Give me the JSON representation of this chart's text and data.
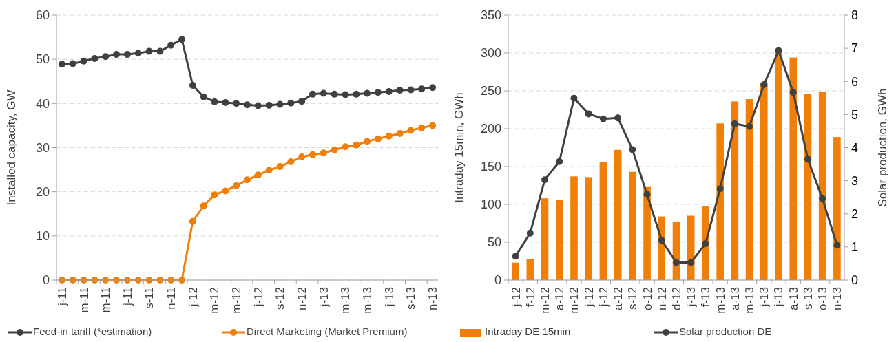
{
  "chart_data": [
    {
      "type": "line",
      "ylabel": "Installed capacity, GW",
      "categories": [
        "j-11",
        null,
        "m-11",
        null,
        "m-11",
        null,
        "j-11",
        null,
        "s-11",
        null,
        "n-11",
        null,
        "j-12",
        null,
        "m-12",
        null,
        "m-12",
        null,
        "j-12",
        null,
        "s-12",
        null,
        "n-12",
        null,
        "j-13",
        null,
        "m-13",
        null,
        "m-13",
        null,
        "j-13",
        null,
        "s-13",
        null,
        "n-13"
      ],
      "series": [
        {
          "name": "Feed-in tariff (*estimation)",
          "color": "#404040",
          "values": [
            48.9,
            49.0,
            49.6,
            50.2,
            50.6,
            51.1,
            51.1,
            51.4,
            51.8,
            51.8,
            53.2,
            54.5,
            44.1,
            41.5,
            40.4,
            40.2,
            40.0,
            39.7,
            39.5,
            39.6,
            39.8,
            40.1,
            40.5,
            42.1,
            42.3,
            42.1,
            42.0,
            42.1,
            42.3,
            42.5,
            42.7,
            43.0,
            43.1,
            43.3,
            43.6
          ]
        },
        {
          "name": "Direct Marketing (Market Premium)",
          "color": "#f07f09",
          "values": [
            0,
            0,
            0,
            0,
            0,
            0,
            0,
            0,
            0,
            0,
            0,
            0,
            13.3,
            16.8,
            19.3,
            20.2,
            21.4,
            22.7,
            23.8,
            24.9,
            25.7,
            26.8,
            27.9,
            28.4,
            28.8,
            29.5,
            30.2,
            30.6,
            31.4,
            32.0,
            32.6,
            33.2,
            33.9,
            34.5,
            35.0
          ]
        }
      ],
      "ylim": [
        0,
        60
      ],
      "yticks": [
        0,
        10,
        20,
        30,
        40,
        50,
        60
      ],
      "grid": "y",
      "legend": "bottom",
      "marker": "circle",
      "line_style": "solid"
    },
    {
      "type": "bar",
      "ylabel": "Intraday 15min, GWh",
      "y2label": "Solar production, GWh",
      "categories": [
        "j-12",
        "f-12",
        "m-12",
        "a-12",
        "m-12",
        "j-12",
        "j-12",
        "a-12",
        "s-12",
        "o-12",
        "n-12",
        "d-12",
        "j-13",
        "f-13",
        "m-13",
        "a-13",
        "m-13",
        "j-13",
        "j-13",
        "a-13",
        "s-13",
        "o-13",
        "n-13"
      ],
      "series": [
        {
          "name": "Intraday DE 15min",
          "color": "#f07f09",
          "values": [
            23,
            28,
            108,
            106,
            137,
            136,
            156,
            172,
            143,
            123,
            84,
            77,
            85,
            98,
            207,
            236,
            239,
            261,
            302,
            294,
            246,
            249,
            189
          ]
        },
        {
          "name": "Solar production DE",
          "type": "line",
          "axis": "y2",
          "color": "#404040",
          "values": [
            0.72,
            1.42,
            3.03,
            3.58,
            5.49,
            5.02,
            4.87,
            4.9,
            3.94,
            2.58,
            1.2,
            0.53,
            0.53,
            1.1,
            2.76,
            4.72,
            4.64,
            5.9,
            6.93,
            5.67,
            3.65,
            2.46,
            1.05
          ]
        }
      ],
      "ylim": [
        0,
        350
      ],
      "yticks": [
        0,
        50,
        100,
        150,
        200,
        250,
        300,
        350
      ],
      "y2lim": [
        0,
        8
      ],
      "y2ticks": [
        0,
        1,
        2,
        3,
        4,
        5,
        6,
        7,
        8
      ],
      "grid": "y",
      "legend": "bottom",
      "marker": "circle",
      "line_style": "solid"
    }
  ]
}
